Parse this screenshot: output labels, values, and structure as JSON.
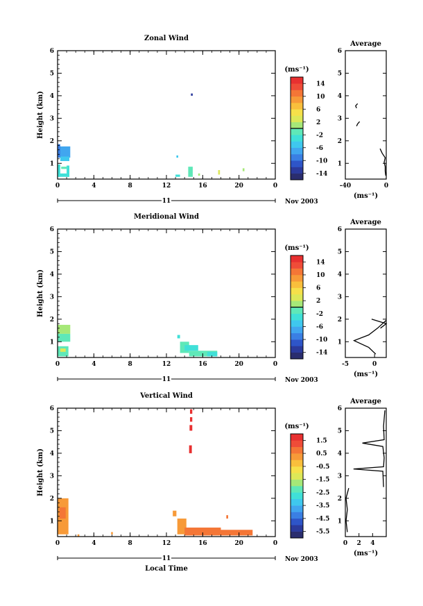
{
  "chart_data": [
    {
      "type": "heatmap",
      "title": "Zonal Wind",
      "ylabel": "Height (km)",
      "xlim": [
        0,
        24
      ],
      "ylim": [
        0.3,
        6
      ],
      "x_ticks": [
        "0",
        "4",
        "8",
        "12",
        "16",
        "20",
        "0"
      ],
      "y_ticks": [
        "1",
        "2",
        "3",
        "4",
        "5",
        "6"
      ],
      "date_day": "11",
      "date_label": "Nov 2003",
      "colorbar": {
        "unit": "(ms⁻¹)",
        "labels": [
          "14",
          "10",
          "6",
          "2",
          "-2",
          "-6",
          "-10",
          "-14"
        ],
        "range": [
          -16,
          16
        ],
        "zero_line": 0
      },
      "cells": [
        {
          "t0": 0.0,
          "t1": 1.4,
          "h0": 1.25,
          "h1": 1.75,
          "v": -8
        },
        {
          "t0": 0.0,
          "t1": 0.3,
          "h0": 1.25,
          "h1": 1.85,
          "v": -9
        },
        {
          "t0": 0.3,
          "t1": 1.3,
          "h0": 1.1,
          "h1": 1.3,
          "v": -6
        },
        {
          "t0": 0.0,
          "t1": 1.3,
          "h0": 0.4,
          "h1": 0.55,
          "v": -4
        },
        {
          "t0": 0.0,
          "t1": 0.3,
          "h0": 0.4,
          "h1": 0.95,
          "v": -4
        },
        {
          "t0": 1.0,
          "t1": 1.3,
          "h0": 0.4,
          "h1": 0.9,
          "v": -3
        },
        {
          "t0": 0.4,
          "t1": 1.0,
          "h0": 0.75,
          "h1": 0.85,
          "v": -2
        },
        {
          "t0": 14.7,
          "t1": 14.9,
          "h0": 4.0,
          "h1": 4.1,
          "v": -13
        },
        {
          "t0": 13.1,
          "t1": 13.3,
          "h0": 1.25,
          "h1": 1.35,
          "v": -5
        },
        {
          "t0": 14.4,
          "t1": 14.9,
          "h0": 0.4,
          "h1": 0.85,
          "v": -1
        },
        {
          "t0": 13.0,
          "t1": 13.5,
          "h0": 0.4,
          "h1": 0.5,
          "v": -3
        },
        {
          "t0": 15.5,
          "t1": 15.7,
          "h0": 0.45,
          "h1": 0.55,
          "v": 1
        },
        {
          "t0": 17.7,
          "t1": 17.9,
          "h0": 0.5,
          "h1": 0.7,
          "v": 2
        },
        {
          "t0": 20.4,
          "t1": 20.6,
          "h0": 0.65,
          "h1": 0.78,
          "v": 1
        }
      ],
      "average": {
        "title": "Average",
        "xlim": [
          -40,
          0
        ],
        "x_ticks": [
          "-40",
          "0"
        ],
        "unit": "(ms⁻¹)",
        "profile": [
          {
            "v": -28,
            "h": 3.65
          },
          {
            "v": -30,
            "h": 3.55
          },
          {
            "v": -29,
            "h": 3.45
          }
        ],
        "profile2": [
          {
            "v": -26,
            "h": 2.85
          },
          {
            "v": -28,
            "h": 2.75
          },
          {
            "v": -29,
            "h": 2.65
          }
        ],
        "profile3": [
          {
            "v": -6,
            "h": 1.65
          },
          {
            "v": -4,
            "h": 1.45
          },
          {
            "v": -1,
            "h": 1.25
          },
          {
            "v": -2,
            "h": 1.05
          },
          {
            "v": -1,
            "h": 0.85
          },
          {
            "v": -1,
            "h": 0.65
          },
          {
            "v": -0.5,
            "h": 0.45
          }
        ]
      }
    },
    {
      "type": "heatmap",
      "title": "Meridional Wind",
      "ylabel": "Height (km)",
      "xlim": [
        0,
        24
      ],
      "ylim": [
        0.3,
        6
      ],
      "x_ticks": [
        "0",
        "4",
        "8",
        "12",
        "16",
        "20",
        "0"
      ],
      "y_ticks": [
        "1",
        "2",
        "3",
        "4",
        "5",
        "6"
      ],
      "date_day": "11",
      "date_label": "Nov 2003",
      "colorbar": {
        "unit": "(ms⁻¹)",
        "labels": [
          "14",
          "10",
          "6",
          "2",
          "-2",
          "-6",
          "-10",
          "-14"
        ],
        "range": [
          -16,
          16
        ],
        "zero_line": 0
      },
      "cells": [
        {
          "t0": 0.0,
          "t1": 1.4,
          "h0": 1.35,
          "h1": 1.75,
          "v": 1
        },
        {
          "t0": 0.0,
          "t1": 1.4,
          "h0": 1.0,
          "h1": 1.35,
          "v": -2
        },
        {
          "t0": 0.0,
          "t1": 1.2,
          "h0": 0.35,
          "h1": 0.8,
          "v": -1
        },
        {
          "t0": 0.3,
          "t1": 0.9,
          "h0": 0.55,
          "h1": 0.7,
          "v": 2
        },
        {
          "t0": 13.2,
          "t1": 13.5,
          "h0": 1.15,
          "h1": 1.3,
          "v": -3
        },
        {
          "t0": 13.5,
          "t1": 14.5,
          "h0": 0.5,
          "h1": 1.0,
          "v": -2
        },
        {
          "t0": 14.5,
          "t1": 17.6,
          "h0": 0.35,
          "h1": 0.6,
          "v": -2
        },
        {
          "t0": 14.0,
          "t1": 15.5,
          "h0": 0.6,
          "h1": 0.85,
          "v": -3
        },
        {
          "t0": 16.5,
          "t1": 17.6,
          "h0": 0.35,
          "h1": 0.55,
          "v": -4
        }
      ],
      "average": {
        "title": "Average",
        "xlim": [
          -5,
          2
        ],
        "x_ticks": [
          "-5",
          "0"
        ],
        "unit": "(ms⁻¹)",
        "profile": [
          {
            "v": 2.0,
            "h": 1.95
          },
          {
            "v": 0.5,
            "h": 1.6
          },
          {
            "v": -1.0,
            "h": 1.3
          },
          {
            "v": -3.5,
            "h": 1.05
          },
          {
            "v": -1.0,
            "h": 0.75
          },
          {
            "v": 0.2,
            "h": 0.45
          }
        ],
        "profile2": [
          {
            "v": -0.5,
            "h": 2.0
          },
          {
            "v": 2.0,
            "h": 1.8
          },
          {
            "v": 1.0,
            "h": 1.6
          }
        ]
      }
    },
    {
      "type": "heatmap",
      "title": "Vertical Wind",
      "ylabel": "Height (km)",
      "xlabel": "Local Time",
      "xlim": [
        0,
        24
      ],
      "ylim": [
        0.3,
        6
      ],
      "x_ticks": [
        "0",
        "4",
        "8",
        "12",
        "16",
        "20",
        "0"
      ],
      "y_ticks": [
        "1",
        "2",
        "3",
        "4",
        "5",
        "6"
      ],
      "date_day": "11",
      "date_label": "Nov 2003",
      "colorbar": {
        "unit": "(ms⁻¹)",
        "labels": [
          "1.5",
          "0.5",
          "-0.5",
          "-1.5",
          "-2.5",
          "-3.5",
          "-4.5",
          "-5.5"
        ],
        "range": [
          -6,
          2
        ]
      },
      "cells": [
        {
          "t0": 14.6,
          "t1": 14.85,
          "h0": 5.75,
          "h1": 5.95,
          "v": 1.8
        },
        {
          "t0": 14.6,
          "t1": 14.85,
          "h0": 5.4,
          "h1": 5.6,
          "v": 1.8
        },
        {
          "t0": 14.55,
          "t1": 14.85,
          "h0": 5.0,
          "h1": 5.25,
          "v": 1.8
        },
        {
          "t0": 14.5,
          "t1": 14.8,
          "h0": 4.0,
          "h1": 4.35,
          "v": 1.8
        },
        {
          "t0": 0.0,
          "t1": 1.2,
          "h0": 0.4,
          "h1": 2.0,
          "v": 0.2
        },
        {
          "t0": 0.2,
          "t1": 0.9,
          "h0": 1.1,
          "h1": 1.6,
          "v": 0.6
        },
        {
          "t0": 2.2,
          "t1": 2.4,
          "h0": 0.3,
          "h1": 0.4,
          "v": 0.3
        },
        {
          "t0": 5.9,
          "t1": 6.1,
          "h0": 0.4,
          "h1": 0.5,
          "v": 0.4
        },
        {
          "t0": 12.7,
          "t1": 13.1,
          "h0": 1.2,
          "h1": 1.45,
          "v": 0.3
        },
        {
          "t0": 13.2,
          "t1": 14.2,
          "h0": 0.4,
          "h1": 1.1,
          "v": 0.4
        },
        {
          "t0": 14.0,
          "t1": 18.0,
          "h0": 0.35,
          "h1": 0.7,
          "v": 0.8
        },
        {
          "t0": 18.0,
          "t1": 21.5,
          "h0": 0.35,
          "h1": 0.6,
          "v": 0.5
        },
        {
          "t0": 18.6,
          "t1": 18.8,
          "h0": 1.1,
          "h1": 1.25,
          "v": 0.9
        }
      ],
      "average": {
        "title": "Average",
        "xlim": [
          0,
          6
        ],
        "x_ticks": [
          "0",
          "2",
          "4"
        ],
        "unit": "(ms⁻¹)",
        "profile": [
          {
            "v": 5.8,
            "h": 5.9
          },
          {
            "v": 5.6,
            "h": 5.2
          },
          {
            "v": 5.7,
            "h": 4.6
          },
          {
            "v": 2.5,
            "h": 4.45
          },
          {
            "v": 5.5,
            "h": 4.3
          },
          {
            "v": 5.7,
            "h": 3.8
          },
          {
            "v": 5.6,
            "h": 3.4
          },
          {
            "v": 1.2,
            "h": 3.3
          },
          {
            "v": 5.5,
            "h": 3.2
          },
          {
            "v": 5.6,
            "h": 2.5
          }
        ],
        "profile2": [
          {
            "v": 0.5,
            "h": 2.45
          },
          {
            "v": 0.1,
            "h": 2.0
          },
          {
            "v": 0.3,
            "h": 1.5
          },
          {
            "v": 0.1,
            "h": 1.0
          },
          {
            "v": 0.3,
            "h": 0.5
          }
        ]
      }
    }
  ]
}
